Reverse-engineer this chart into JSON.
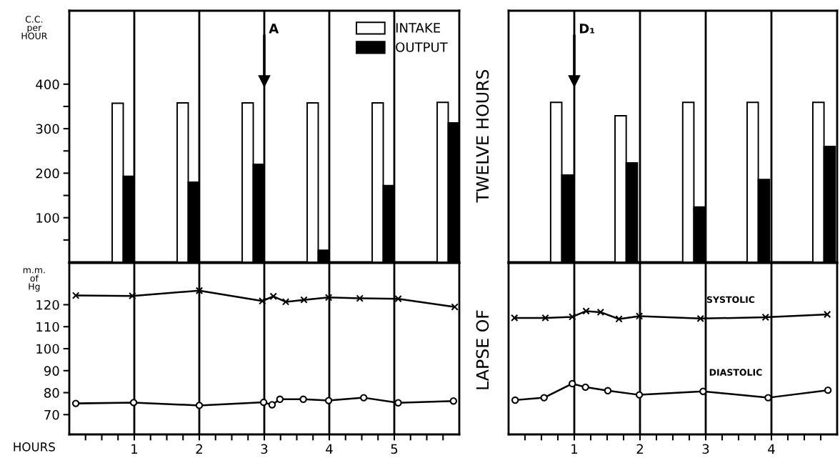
{
  "chart_data": [
    {
      "type": "bar",
      "x": [
        0.83,
        1.83,
        2.83,
        3.83,
        4.83,
        5.83
      ],
      "xlim": [
        0,
        6
      ],
      "xticks": [
        1,
        2,
        3,
        4,
        5
      ],
      "tick_labels": "y",
      "grid": "x",
      "ylim": [
        0,
        565
      ],
      "yticks": [
        {
          "value": 50,
          "label": null
        },
        100,
        {
          "value": 150,
          "label": null
        },
        200,
        {
          "value": 250,
          "label": null
        },
        300,
        {
          "value": 350,
          "label": null
        },
        400
      ],
      "ylabel": "C.C.\nper\nHOUR",
      "legend": "top right",
      "series": [
        {
          "name": "INTAKE",
          "color": "#ffffff",
          "values": [
            357,
            358,
            358,
            358,
            358,
            359
          ]
        },
        {
          "name": "OUTPUT",
          "color": "#000000",
          "values": [
            193,
            180,
            220,
            27,
            172,
            313
          ]
        }
      ],
      "ref_lines": [
        {
          "axis": "x",
          "value": 3,
          "label": "A"
        }
      ],
      "annotations": [
        "LAPSE OF",
        "TWELVE HOURS"
      ]
    },
    {
      "type": "bar",
      "x": [
        0.81,
        1.79,
        2.82,
        3.8,
        4.8
      ],
      "xlim": [
        0,
        5
      ],
      "xticks": [
        1,
        2,
        3,
        4
      ],
      "tick_labels": false,
      "grid": "x",
      "ylim": [
        0,
        565
      ],
      "series": [
        {
          "color": "#ffffff",
          "values": [
            359,
            329,
            359,
            359,
            359
          ]
        },
        {
          "color": "#000000",
          "values": [
            196,
            223,
            124,
            186,
            260
          ]
        }
      ],
      "ref_lines": [
        {
          "axis": "x",
          "value": 1,
          "label": "D₁"
        }
      ]
    },
    {
      "type": "line",
      "xlim": [
        0,
        6
      ],
      "ylim": [
        61,
        139
      ],
      "yticks": [
        70,
        80,
        90,
        100,
        110,
        120
      ],
      "ylabel": "m.m.\nof\nHg",
      "xlabel": "HOURS",
      "grid": "x",
      "xticks": [
        {
          "value": 0.25,
          "label": null
        },
        {
          "value": 0.5,
          "label": null
        },
        {
          "value": 0.75,
          "label": null
        },
        1,
        {
          "value": 1.25,
          "label": null
        },
        {
          "value": 1.5,
          "label": null
        },
        {
          "value": 1.75,
          "label": null
        },
        2,
        {
          "value": 2.25,
          "label": null
        },
        {
          "value": 2.5,
          "label": null
        },
        {
          "value": 2.75,
          "label": null
        },
        3,
        {
          "value": 3.25,
          "label": null
        },
        {
          "value": 3.5,
          "label": null
        },
        {
          "value": 3.75,
          "label": null
        },
        4,
        {
          "value": 4.25,
          "label": null
        },
        {
          "value": 4.5,
          "label": null
        },
        {
          "value": 4.75,
          "label": null
        },
        5,
        {
          "value": 5.25,
          "label": null
        },
        {
          "value": 5.5,
          "label": null
        },
        {
          "value": 5.75,
          "label": null
        }
      ],
      "series": [
        {
          "color": "#000000",
          "marker": "cross",
          "x": [
            0.1,
            0.97,
            2.0,
            2.97,
            3.14,
            3.33,
            3.61,
            3.99,
            4.47,
            5.06,
            5.93
          ],
          "values": [
            124.2,
            124,
            126.4,
            121.7,
            123.8,
            121.3,
            122.2,
            123.3,
            122.9,
            122.7,
            119
          ]
        },
        {
          "color": "#000000",
          "marker": "circle",
          "x": [
            0.1,
            0.99,
            2.0,
            2.99,
            3.12,
            3.24,
            3.6,
            3.99,
            4.53,
            5.06,
            5.91
          ],
          "values": [
            75.1,
            75.5,
            74.2,
            75.6,
            74.5,
            77,
            77,
            76.4,
            77.7,
            75.4,
            76.2
          ]
        }
      ]
    },
    {
      "type": "line",
      "xlim": [
        0,
        5
      ],
      "ylim": [
        61,
        139
      ],
      "tick_labels": "x",
      "grid": "x",
      "xticks": [
        {
          "value": 0.25,
          "label": null
        },
        {
          "value": 0.5,
          "label": null
        },
        {
          "value": 0.75,
          "label": null
        },
        1,
        {
          "value": 1.25,
          "label": null
        },
        {
          "value": 1.5,
          "label": null
        },
        {
          "value": 1.75,
          "label": null
        },
        2,
        {
          "value": 2.25,
          "label": null
        },
        {
          "value": 2.5,
          "label": null
        },
        {
          "value": 2.75,
          "label": null
        },
        3,
        {
          "value": 3.25,
          "label": null
        },
        {
          "value": 3.5,
          "label": null
        },
        {
          "value": 3.75,
          "label": null
        },
        4,
        {
          "value": 4.25,
          "label": null
        },
        {
          "value": 4.5,
          "label": null
        },
        {
          "value": 4.75,
          "label": null
        }
      ],
      "series": [
        {
          "name": "SYSTOLIC",
          "color": "#000000",
          "marker": "cross",
          "x": [
            0.09,
            0.56,
            0.97,
            1.18,
            1.4,
            1.68,
            1.99,
            2.92,
            3.91,
            4.85
          ],
          "values": [
            114,
            114,
            114.5,
            117.1,
            116.6,
            113.5,
            114.8,
            113.7,
            114.3,
            115.6
          ]
        },
        {
          "name": "DIASTOLIC",
          "color": "#000000",
          "marker": "circle",
          "x": [
            0.1,
            0.54,
            0.97,
            1.17,
            1.51,
            1.99,
            2.96,
            3.95,
            4.86
          ],
          "values": [
            76.6,
            77.7,
            84.1,
            82.5,
            80.9,
            79,
            80.6,
            77.7,
            81.1
          ]
        }
      ]
    }
  ]
}
